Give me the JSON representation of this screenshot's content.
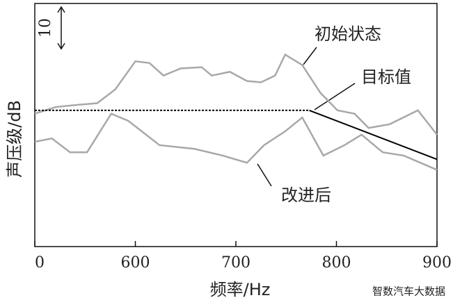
{
  "chart_data": {
    "type": "line",
    "xlabel": "频率/Hz",
    "ylabel": "声压级/dB",
    "xlim": [
      500,
      900
    ],
    "ylim": [
      0,
      58
    ],
    "xticks": [
      {
        "value": 500,
        "label": "0"
      },
      600,
      700,
      800,
      900
    ],
    "scale_bar": {
      "value": 10,
      "label": "10"
    },
    "series": [
      {
        "name": "初始状态",
        "color": "#a8a8a8",
        "x": [
          500,
          521,
          542,
          562,
          580,
          600,
          614,
          628,
          645,
          666,
          676,
          694,
          711,
          725,
          739,
          749,
          766,
          784,
          801,
          818,
          832,
          853,
          881,
          900
        ],
        "values": [
          31.7,
          33.3,
          33.8,
          34.2,
          37.5,
          44.2,
          43.8,
          40.8,
          42.5,
          42.8,
          40.8,
          41.7,
          39.5,
          39.2,
          40.8,
          45.8,
          43.3,
          36.7,
          32.5,
          31.7,
          28.3,
          29.2,
          32.5,
          26.7
        ]
      },
      {
        "name": "改进后",
        "color": "#a8a8a8",
        "x": [
          500,
          517,
          535,
          552,
          576,
          593,
          624,
          659,
          687,
          711,
          728,
          749,
          766,
          787,
          808,
          825,
          846,
          867,
          900
        ],
        "values": [
          25,
          25.8,
          22.5,
          22.5,
          31.7,
          30,
          24.2,
          23.3,
          21.7,
          20,
          24.2,
          27.5,
          30.8,
          21.7,
          24.2,
          26.7,
          22.5,
          21.7,
          18.3
        ]
      },
      {
        "name": "目标值",
        "color": "#000000",
        "x": [
          500,
          773,
          900
        ],
        "values": [
          32.5,
          32.5,
          20.8
        ]
      }
    ],
    "watermark": "智数汽车大数据"
  }
}
